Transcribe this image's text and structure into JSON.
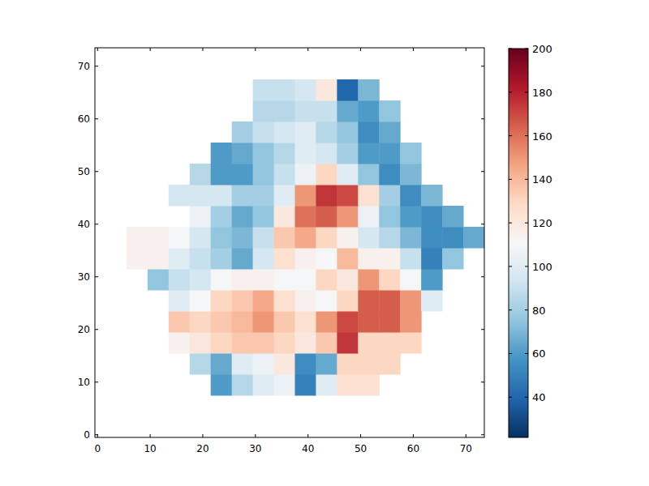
{
  "chart_data": {
    "type": "heatmap",
    "x_edges": [
      5.5,
      9.5,
      13.5,
      17.5,
      21.5,
      25.5,
      29.5,
      33.5,
      37.5,
      41.5,
      45.5,
      49.5,
      53.5,
      57.5,
      61.5,
      65.5,
      69.5,
      73.5
    ],
    "y_edges": [
      7.5,
      11.5,
      15.5,
      19.5,
      23.5,
      27.5,
      31.5,
      35.5,
      39.5,
      43.5,
      47.5,
      51.5,
      55.5,
      59.5,
      63.5,
      67.5
    ],
    "cells": [
      [
        null,
        null,
        null,
        null,
        60,
        85,
        100,
        105,
        50,
        100,
        125,
        125,
        null,
        null,
        null,
        null,
        null
      ],
      [
        null,
        null,
        null,
        85,
        65,
        100,
        105,
        120,
        55,
        65,
        130,
        130,
        130,
        null,
        null,
        null,
        null
      ],
      [
        null,
        null,
        115,
        120,
        130,
        135,
        135,
        130,
        120,
        135,
        175,
        130,
        130,
        130,
        null,
        null,
        null
      ],
      [
        null,
        null,
        135,
        130,
        135,
        140,
        150,
        135,
        125,
        150,
        170,
        165,
        165,
        150,
        null,
        null,
        null
      ],
      [
        null,
        null,
        100,
        110,
        130,
        135,
        145,
        125,
        115,
        110,
        130,
        165,
        165,
        150,
        100,
        null,
        null
      ],
      [
        null,
        75,
        90,
        95,
        110,
        115,
        115,
        110,
        110,
        130,
        120,
        150,
        130,
        110,
        60,
        null,
        null
      ],
      [
        115,
        115,
        100,
        90,
        80,
        65,
        95,
        125,
        115,
        110,
        140,
        115,
        115,
        90,
        50,
        75,
        null
      ],
      [
        115,
        115,
        110,
        95,
        75,
        70,
        90,
        135,
        145,
        130,
        115,
        95,
        85,
        70,
        55,
        55,
        65
      ],
      [
        null,
        null,
        null,
        105,
        80,
        65,
        75,
        120,
        160,
        165,
        150,
        105,
        75,
        60,
        55,
        65,
        null
      ],
      [
        null,
        null,
        95,
        95,
        95,
        80,
        80,
        100,
        150,
        175,
        170,
        125,
        80,
        55,
        70,
        null,
        null
      ],
      [
        null,
        null,
        null,
        85,
        60,
        60,
        75,
        90,
        105,
        130,
        100,
        75,
        55,
        70,
        null,
        null,
        null
      ],
      [
        null,
        null,
        null,
        null,
        60,
        65,
        75,
        85,
        100,
        95,
        80,
        60,
        60,
        75,
        null,
        null,
        null
      ],
      [
        null,
        null,
        null,
        null,
        null,
        80,
        90,
        95,
        100,
        85,
        75,
        55,
        65,
        null,
        null,
        null,
        null
      ],
      [
        null,
        null,
        null,
        null,
        null,
        null,
        85,
        85,
        90,
        90,
        65,
        60,
        75,
        null,
        null,
        null,
        null
      ],
      [
        null,
        null,
        null,
        null,
        null,
        null,
        90,
        90,
        95,
        120,
        40,
        70,
        null,
        null,
        null,
        null,
        null
      ]
    ],
    "xlim": [
      -0.5,
      73.5
    ],
    "ylim": [
      -0.5,
      73.5
    ],
    "xticks": [
      0,
      10,
      20,
      30,
      40,
      50,
      60,
      70
    ],
    "yticks": [
      0,
      10,
      20,
      30,
      40,
      50,
      60,
      70
    ],
    "colorbar": {
      "range": [
        21.5,
        200
      ],
      "ticks": [
        40,
        60,
        80,
        100,
        120,
        140,
        160,
        180,
        200
      ]
    }
  }
}
